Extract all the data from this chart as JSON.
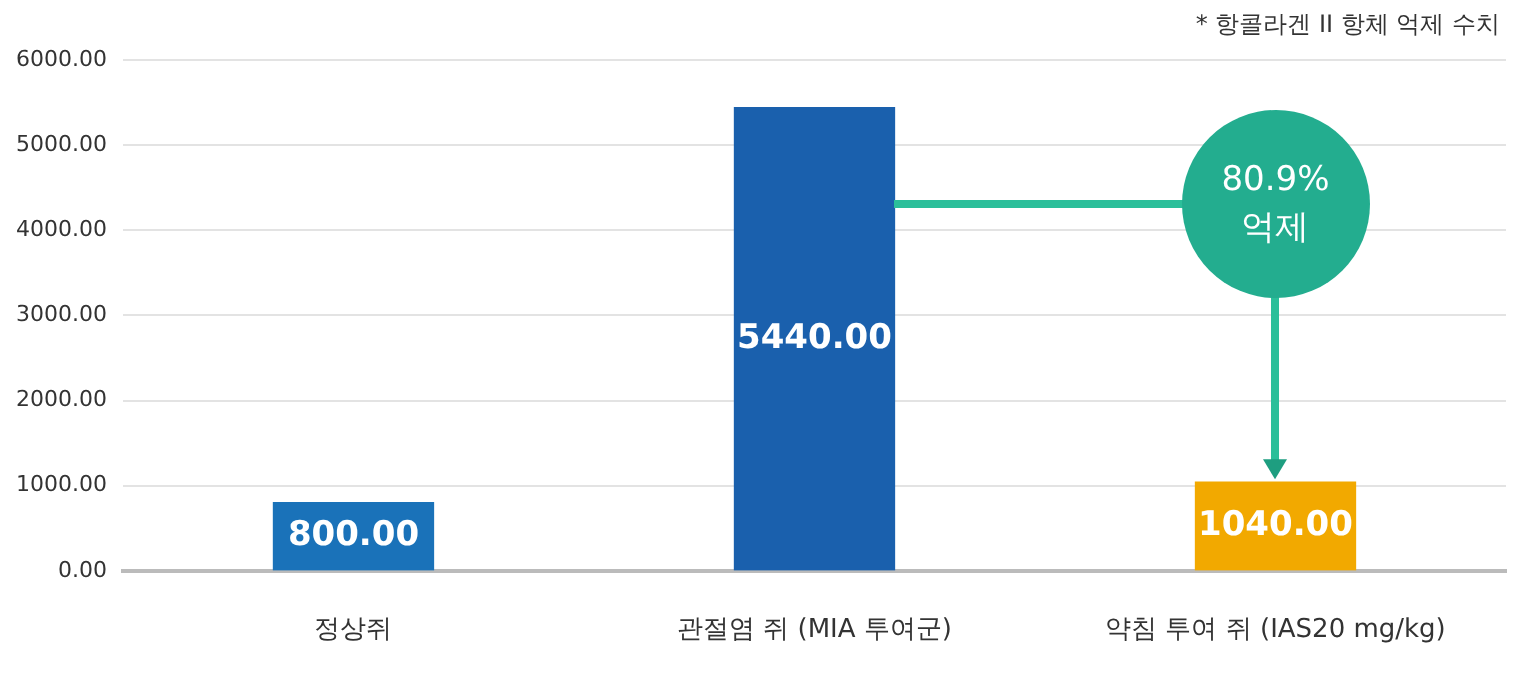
{
  "chart_data": {
    "type": "bar",
    "categories": [
      "정상쥐",
      "관절염 쥐 (MIA 투여군)",
      "약침 투여 쥐 (IAS20 mg/kg)"
    ],
    "values": [
      800,
      5440,
      1040
    ],
    "colors": [
      "#1a72b9",
      "#1a60ad",
      "#f2a900"
    ],
    "value_labels": [
      "800.00",
      "5440.00",
      "1040.00"
    ],
    "ylim": [
      0,
      6000
    ],
    "yticks": [
      {
        "value": 0,
        "label": "0.00"
      },
      {
        "value": 1000,
        "label": "1000.00"
      },
      {
        "value": 2000,
        "label": "2000.00"
      },
      {
        "value": 3000,
        "label": "3000.00"
      },
      {
        "value": 4000,
        "label": "4000.00"
      },
      {
        "value": 5000,
        "label": "5000.00"
      },
      {
        "value": 6000,
        "label": "6000.00"
      }
    ],
    "grid": "y",
    "annotations": [
      "* 항콜라겐 II 항체 억제 수치",
      "80.9%\n억제"
    ]
  }
}
